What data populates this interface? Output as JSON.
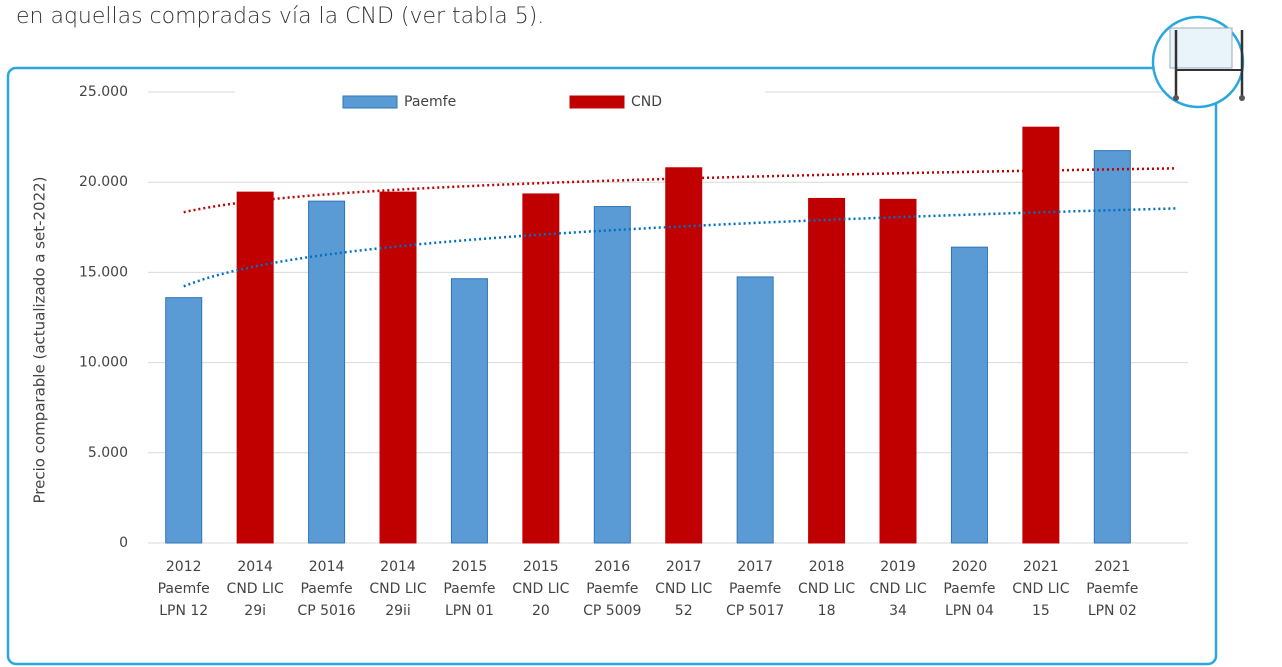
{
  "intro_text": "en aquellas compradas vía la CND (ver tabla 5).",
  "chart_data": {
    "type": "bar",
    "y_label": "Precio comparable (actualizado a set-2022)",
    "categories": [
      [
        "2012",
        "Paemfe",
        "LPN 12"
      ],
      [
        "2014",
        "CND LIC",
        "29i"
      ],
      [
        "2014",
        "Paemfe",
        "CP 5016"
      ],
      [
        "2014",
        "CND LIC",
        "29ii"
      ],
      [
        "2015",
        "Paemfe",
        "LPN 01"
      ],
      [
        "2015",
        "CND LIC",
        "20"
      ],
      [
        "2016",
        "Paemfe",
        "CP 5009"
      ],
      [
        "2017",
        "CND LIC",
        "52"
      ],
      [
        "2017",
        "Paemfe",
        "CP 5017"
      ],
      [
        "2018",
        "CND LIC",
        "18"
      ],
      [
        "2019",
        "CND LIC",
        "34"
      ],
      [
        "2020",
        "Paemfe",
        "LPN 04"
      ],
      [
        "2021",
        "CND LIC",
        "15"
      ],
      [
        "2021",
        "Paemfe",
        "LPN 02"
      ]
    ],
    "series": [
      {
        "name": "Paemfe",
        "color": "#5b9bd5",
        "edge": "#2e75b6",
        "trend_color": "#0070c0",
        "values": [
          13600,
          null,
          18950,
          null,
          14650,
          null,
          18650,
          null,
          14750,
          null,
          null,
          16400,
          null,
          21750
        ]
      },
      {
        "name": "CND",
        "color": "#c00000",
        "edge": "#c00000",
        "trend_color": "#c00000",
        "values": [
          null,
          19450,
          null,
          19450,
          null,
          19350,
          null,
          20800,
          null,
          19100,
          19050,
          null,
          23050,
          null
        ]
      }
    ],
    "trendline": "logarithmic",
    "ylim": [
      0,
      25000
    ],
    "yticks": [
      0,
      {
        "value": 5000,
        "label": "5.000"
      },
      {
        "value": 10000,
        "label": "10.000"
      },
      {
        "value": 15000,
        "label": "15.000"
      },
      {
        "value": 20000,
        "label": "20.000"
      },
      {
        "value": 25000,
        "label": "25.000"
      }
    ],
    "grid": true,
    "legend": "top"
  }
}
